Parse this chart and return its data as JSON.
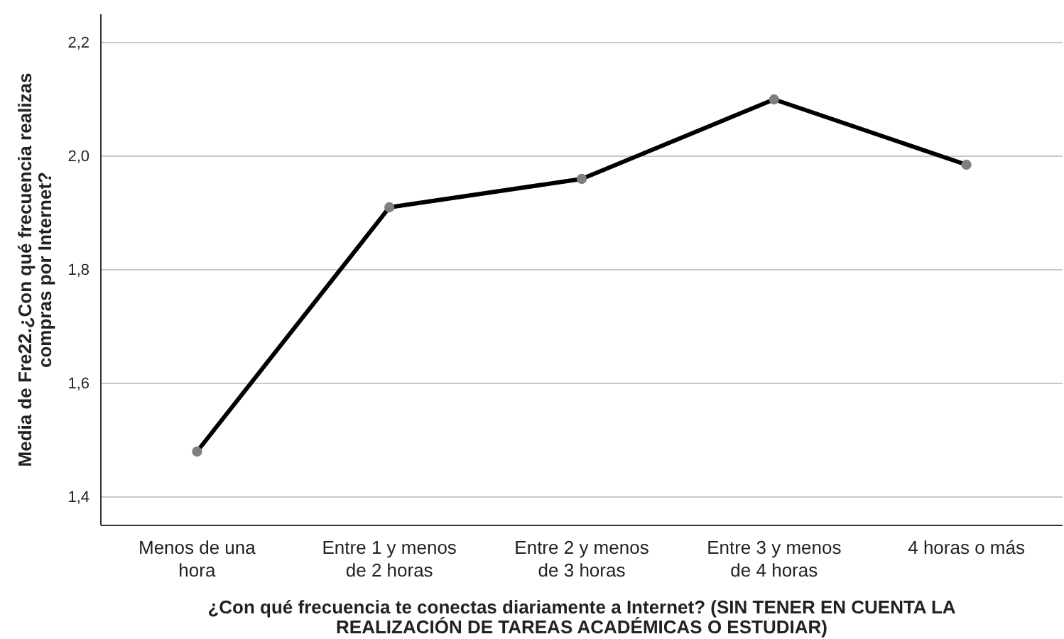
{
  "chart_data": {
    "type": "line",
    "xlabel": "¿Con qué frecuencia te conectas diariamente a Internet? (SIN TENER EN CUENTA LA REALIZACIÓN DE TAREAS ACADÉMICAS O ESTUDIAR)",
    "ylabel": "Media de Fre22.¿Con qué frecuencia realizas compras por Internet?",
    "categories": [
      "Menos de una hora",
      "Entre 1 y menos de 2 horas",
      "Entre 2 y menos de 3 horas",
      "Entre 3 y menos de 4 horas",
      "4 horas o más"
    ],
    "series": [
      {
        "color": "#000000",
        "values": [
          1.48,
          1.91,
          1.96,
          2.1,
          1.985
        ]
      }
    ],
    "ylim": [
      1.35,
      2.25
    ],
    "yticks": [
      {
        "value": 1.4,
        "label": "1,4"
      },
      {
        "value": 1.6,
        "label": "1,6"
      },
      {
        "value": 1.8,
        "label": "1,8"
      },
      {
        "value": 2.0,
        "label": "2,0"
      },
      {
        "value": 2.2,
        "label": "2,2"
      }
    ],
    "grid": "y",
    "marker": "circle",
    "line_style": "solid"
  }
}
